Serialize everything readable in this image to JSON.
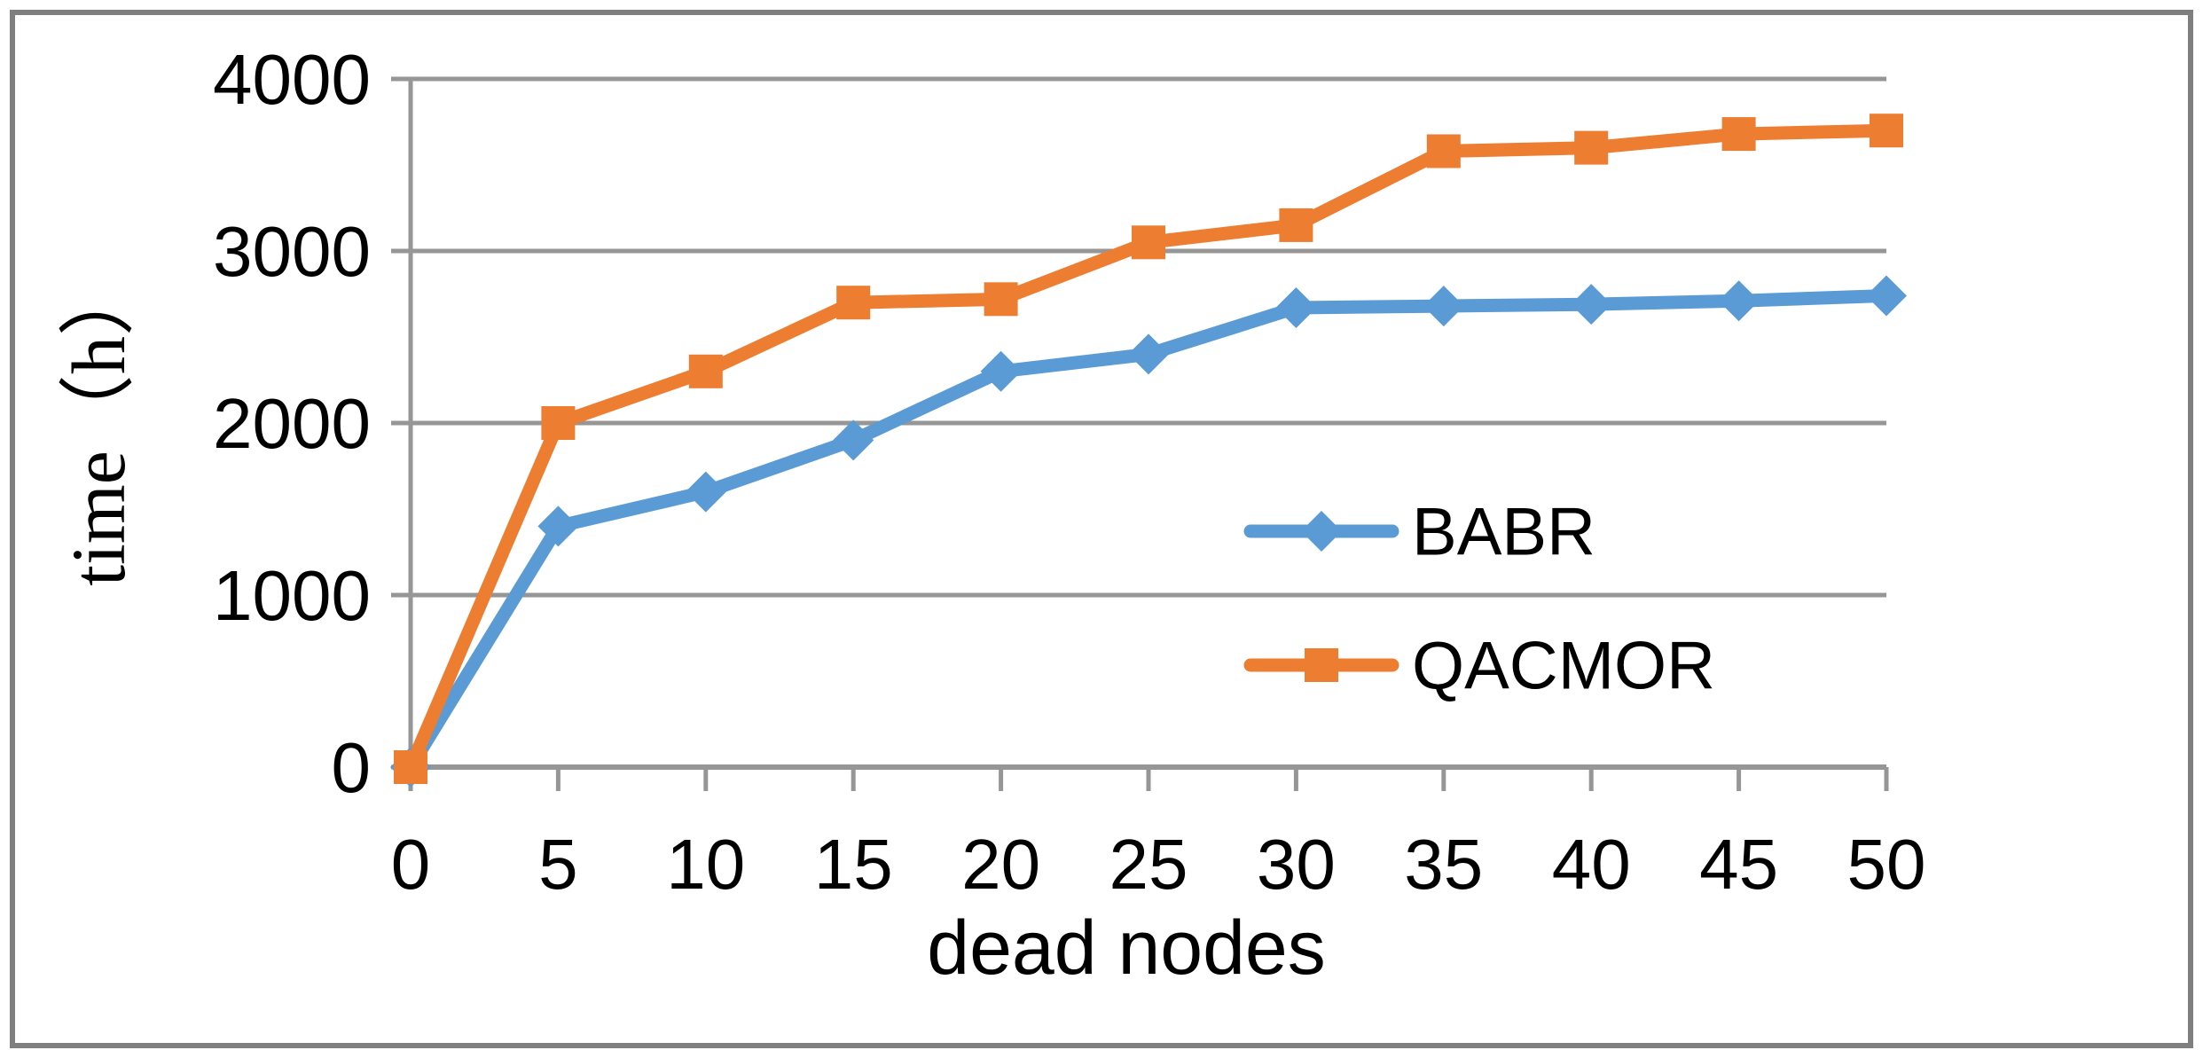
{
  "chart_data": {
    "type": "line",
    "title": "",
    "xlabel": "dead nodes",
    "ylabel": "time（h）",
    "x": [
      0,
      5,
      10,
      15,
      20,
      25,
      30,
      35,
      40,
      45,
      50
    ],
    "series": [
      {
        "name": "BABR",
        "color": "#5B9BD5",
        "marker": "diamond",
        "values": [
          0,
          1400,
          1600,
          1900,
          2300,
          2400,
          2670,
          2680,
          2690,
          2710,
          2740
        ]
      },
      {
        "name": "QACMOR",
        "color": "#ED7D31",
        "marker": "square",
        "values": [
          0,
          2000,
          2300,
          2700,
          2720,
          3050,
          3150,
          3580,
          3600,
          3680,
          3700
        ]
      }
    ],
    "xlim": [
      0,
      50
    ],
    "ylim": [
      0,
      4000
    ],
    "yticks": [
      0,
      1000,
      2000,
      3000,
      4000
    ],
    "xticks": [
      0,
      5,
      10,
      15,
      20,
      25,
      30,
      35,
      40,
      45,
      50
    ],
    "grid": true,
    "legend_position": "center-right-inside"
  },
  "colors": {
    "gridline": "#969696",
    "axis": "#969696",
    "frame": "#7F7F7F",
    "text": "#000000",
    "background": "#FFFFFF"
  }
}
